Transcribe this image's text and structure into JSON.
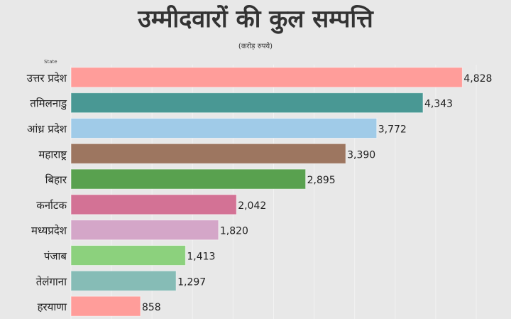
{
  "chart_data": {
    "type": "bar",
    "orientation": "horizontal",
    "title": "उम्मीदवारों की कुल सम्पत्ति",
    "subtitle": "(करोड़ रुपये)",
    "ylabel": "State",
    "xlabel": "",
    "xlim": [
      0,
      5000
    ],
    "grid": true,
    "categories": [
      "उत्तर प्रदेश",
      "तमिलनाडु",
      "आंध्र प्रदेश",
      "महाराष्ट्र",
      "बिहार",
      "कर्नाटक",
      "मध्यप्रदेश",
      "पंजाब",
      "तेलंगाना",
      "हरयाणा"
    ],
    "values": [
      4828,
      4343,
      3772,
      3390,
      2895,
      2042,
      1820,
      1413,
      1297,
      858
    ],
    "value_labels": [
      "4,828",
      "4,343",
      "3,772",
      "3,390",
      "2,895",
      "2,042",
      "1,820",
      "1,413",
      "1,297",
      "858"
    ],
    "colors": [
      "#FF9D9A",
      "#499894",
      "#A0CBE8",
      "#9D7660",
      "#59A14F",
      "#D37295",
      "#D4A6C8",
      "#8CD17D",
      "#86BCB6",
      "#FF9D9A"
    ]
  }
}
